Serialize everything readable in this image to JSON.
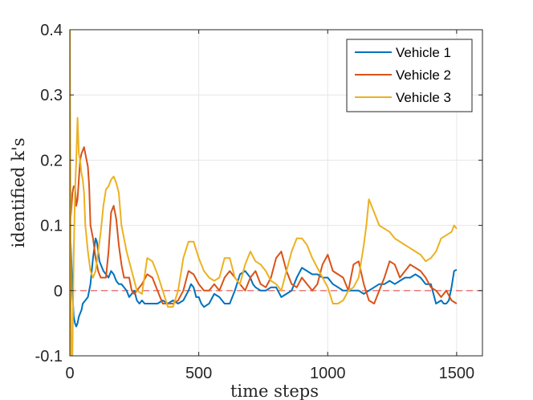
{
  "chart_data": {
    "type": "line",
    "xlabel": "time steps",
    "ylabel": "identified k's",
    "xlim": [
      0,
      1600
    ],
    "ylim": [
      -0.1,
      0.4
    ],
    "xticks": [
      0,
      500,
      1000,
      1500
    ],
    "yticks": [
      -0.1,
      0,
      0.1,
      0.2,
      0.3,
      0.4
    ],
    "xtick_labels": [
      "0",
      "500",
      "1000",
      "1500"
    ],
    "ytick_labels": [
      "-0.1",
      "0",
      "0.1",
      "0.2",
      "0.3",
      "0.4"
    ],
    "grid": true,
    "legend_position": "top-right",
    "reference_line": {
      "y": 0,
      "color": "#e8716f",
      "style": "dashed"
    },
    "series": [
      {
        "name": "Vehicle 1",
        "color": "#0072bd",
        "x": [
          0,
          5,
          10,
          15,
          20,
          25,
          30,
          35,
          40,
          45,
          50,
          60,
          70,
          80,
          90,
          100,
          105,
          110,
          115,
          120,
          130,
          140,
          150,
          160,
          170,
          180,
          190,
          200,
          210,
          220,
          230,
          240,
          250,
          260,
          270,
          280,
          290,
          300,
          320,
          340,
          360,
          380,
          400,
          420,
          440,
          460,
          470,
          480,
          490,
          500,
          510,
          520,
          540,
          560,
          580,
          600,
          620,
          640,
          660,
          680,
          700,
          710,
          720,
          740,
          760,
          780,
          800,
          820,
          840,
          860,
          880,
          900,
          920,
          940,
          960,
          980,
          1000,
          1020,
          1040,
          1060,
          1080,
          1100,
          1120,
          1140,
          1160,
          1180,
          1200,
          1220,
          1240,
          1260,
          1280,
          1300,
          1320,
          1340,
          1360,
          1380,
          1400,
          1420,
          1440,
          1450,
          1460,
          1470,
          1480,
          1490,
          1500
        ],
        "y": [
          0.1,
          0.06,
          0.0,
          -0.04,
          -0.05,
          -0.055,
          -0.05,
          -0.04,
          -0.035,
          -0.03,
          -0.02,
          -0.015,
          -0.01,
          0.01,
          0.05,
          0.08,
          0.075,
          0.06,
          0.045,
          0.04,
          0.03,
          0.025,
          0.02,
          0.03,
          0.025,
          0.015,
          0.01,
          0.01,
          0.005,
          0.0,
          -0.01,
          -0.005,
          0.0,
          -0.015,
          -0.02,
          -0.015,
          -0.02,
          -0.02,
          -0.02,
          -0.02,
          -0.015,
          -0.02,
          -0.015,
          -0.02,
          -0.015,
          0.0,
          0.01,
          0.005,
          -0.01,
          -0.01,
          -0.02,
          -0.025,
          -0.02,
          -0.005,
          -0.01,
          -0.02,
          -0.02,
          0.0,
          0.025,
          0.03,
          0.02,
          0.01,
          0.005,
          0.0,
          0.0,
          0.005,
          0.005,
          -0.01,
          -0.005,
          0.0,
          0.02,
          0.035,
          0.03,
          0.025,
          0.025,
          0.02,
          0.02,
          0.01,
          0.005,
          0.0,
          0.0,
          0.0,
          0.0,
          -0.005,
          0.0,
          0.005,
          0.01,
          0.01,
          0.015,
          0.01,
          0.015,
          0.02,
          0.02,
          0.025,
          0.02,
          0.01,
          0.01,
          -0.02,
          -0.015,
          -0.02,
          -0.02,
          -0.015,
          0.005,
          0.03,
          0.032
        ]
      },
      {
        "name": "Vehicle 2",
        "color": "#d95319",
        "x": [
          0,
          5,
          10,
          15,
          20,
          25,
          30,
          35,
          40,
          45,
          50,
          55,
          60,
          65,
          70,
          75,
          80,
          90,
          100,
          110,
          120,
          130,
          140,
          150,
          160,
          170,
          180,
          190,
          200,
          210,
          220,
          230,
          240,
          250,
          260,
          280,
          300,
          320,
          340,
          360,
          380,
          400,
          420,
          440,
          460,
          480,
          500,
          520,
          540,
          560,
          580,
          600,
          620,
          640,
          660,
          680,
          700,
          720,
          740,
          760,
          780,
          800,
          820,
          840,
          860,
          880,
          900,
          920,
          940,
          960,
          980,
          1000,
          1020,
          1040,
          1060,
          1080,
          1100,
          1120,
          1140,
          1160,
          1180,
          1200,
          1220,
          1240,
          1260,
          1280,
          1300,
          1320,
          1340,
          1360,
          1380,
          1400,
          1420,
          1440,
          1460,
          1480,
          1500
        ],
        "y": [
          0.1,
          0.12,
          0.15,
          0.16,
          0.16,
          0.13,
          0.14,
          0.17,
          0.2,
          0.21,
          0.215,
          0.22,
          0.21,
          0.2,
          0.19,
          0.16,
          0.1,
          0.08,
          0.05,
          0.03,
          0.02,
          0.02,
          0.02,
          0.06,
          0.12,
          0.13,
          0.11,
          0.07,
          0.04,
          0.02,
          0.02,
          0.02,
          0.0,
          -0.005,
          0.0,
          0.01,
          0.025,
          0.02,
          0.0,
          -0.02,
          -0.02,
          -0.02,
          -0.015,
          0.0,
          0.03,
          0.025,
          0.01,
          0.0,
          0.0,
          0.01,
          0.0,
          0.02,
          0.03,
          0.02,
          0.01,
          0.0,
          0.02,
          0.03,
          0.01,
          0.005,
          0.02,
          0.05,
          0.06,
          0.03,
          0.01,
          0.005,
          0.02,
          0.01,
          0.0,
          0.01,
          0.04,
          0.055,
          0.03,
          0.025,
          0.02,
          0.0,
          0.04,
          0.045,
          0.01,
          -0.015,
          -0.02,
          0.0,
          0.02,
          0.045,
          0.04,
          0.02,
          0.03,
          0.04,
          0.035,
          0.03,
          0.02,
          0.005,
          0.0,
          -0.01,
          0.0,
          -0.015,
          -0.02
        ]
      },
      {
        "name": "Vehicle 3",
        "color": "#edb120",
        "x": [
          0,
          5,
          10,
          15,
          20,
          25,
          30,
          35,
          40,
          45,
          50,
          55,
          60,
          70,
          80,
          90,
          100,
          110,
          120,
          130,
          140,
          150,
          160,
          170,
          180,
          190,
          200,
          220,
          240,
          260,
          280,
          300,
          320,
          340,
          360,
          380,
          400,
          420,
          440,
          460,
          480,
          500,
          520,
          540,
          560,
          580,
          600,
          620,
          640,
          660,
          680,
          700,
          720,
          740,
          760,
          780,
          800,
          820,
          840,
          860,
          880,
          900,
          920,
          940,
          960,
          980,
          1000,
          1020,
          1040,
          1060,
          1080,
          1100,
          1120,
          1140,
          1150,
          1160,
          1170,
          1180,
          1200,
          1220,
          1240,
          1260,
          1280,
          1300,
          1320,
          1340,
          1360,
          1380,
          1400,
          1420,
          1440,
          1460,
          1480,
          1490,
          1500
        ],
        "y": [
          0.4,
          -0.1,
          -0.1,
          0.05,
          0.15,
          0.2,
          0.265,
          0.21,
          0.2,
          0.18,
          0.17,
          0.15,
          0.1,
          0.06,
          0.03,
          0.02,
          0.03,
          0.06,
          0.09,
          0.13,
          0.155,
          0.16,
          0.17,
          0.175,
          0.165,
          0.15,
          0.1,
          0.06,
          0.03,
          0.0,
          -0.005,
          0.05,
          0.045,
          0.025,
          0.0,
          -0.025,
          -0.025,
          0.0,
          0.05,
          0.075,
          0.075,
          0.05,
          0.03,
          0.02,
          0.015,
          0.02,
          0.05,
          0.05,
          0.02,
          0.01,
          0.04,
          0.06,
          0.045,
          0.04,
          0.03,
          0.015,
          0.01,
          0.0,
          0.03,
          0.06,
          0.08,
          0.08,
          0.07,
          0.05,
          0.035,
          0.02,
          0.005,
          -0.02,
          -0.02,
          -0.015,
          0.0,
          0.005,
          0.02,
          0.07,
          0.1,
          0.14,
          0.13,
          0.12,
          0.1,
          0.095,
          0.09,
          0.08,
          0.075,
          0.07,
          0.065,
          0.06,
          0.055,
          0.045,
          0.05,
          0.06,
          0.08,
          0.085,
          0.09,
          0.1,
          0.095
        ]
      }
    ]
  }
}
